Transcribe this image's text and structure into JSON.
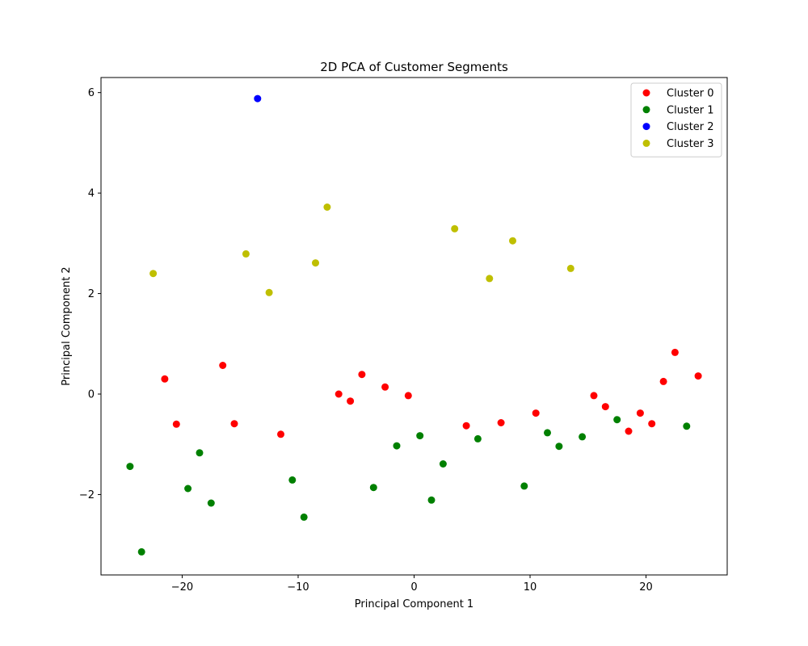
{
  "chart_data": {
    "type": "scatter",
    "title": "2D PCA of Customer Segments",
    "xlabel": "Principal Component 1",
    "ylabel": "Principal Component 2",
    "xlim": [
      -27,
      27
    ],
    "ylim": [
      -3.6,
      6.3
    ],
    "xticks": [
      -20,
      -10,
      0,
      10,
      20
    ],
    "yticks": [
      -2,
      0,
      2,
      4,
      6
    ],
    "grid": false,
    "legend_position": "top-right",
    "series": [
      {
        "name": "Cluster 0",
        "color": "#ff0000",
        "points": [
          [
            -21.5,
            0.3
          ],
          [
            -20.5,
            -0.6
          ],
          [
            -16.5,
            0.57
          ],
          [
            -15.5,
            -0.59
          ],
          [
            -11.5,
            -0.8
          ],
          [
            -6.5,
            0.0
          ],
          [
            -5.5,
            -0.14
          ],
          [
            -4.5,
            0.39
          ],
          [
            -2.5,
            0.14
          ],
          [
            -0.5,
            -0.03
          ],
          [
            4.5,
            -0.63
          ],
          [
            7.5,
            -0.57
          ],
          [
            10.5,
            -0.38
          ],
          [
            15.5,
            -0.03
          ],
          [
            16.5,
            -0.25
          ],
          [
            18.5,
            -0.74
          ],
          [
            19.5,
            -0.38
          ],
          [
            20.5,
            -0.59
          ],
          [
            21.5,
            0.25
          ],
          [
            22.5,
            0.83
          ],
          [
            24.5,
            0.36
          ]
        ]
      },
      {
        "name": "Cluster 1",
        "color": "#008000",
        "points": [
          [
            -24.5,
            -1.44
          ],
          [
            -23.5,
            -3.14
          ],
          [
            -19.5,
            -1.88
          ],
          [
            -18.5,
            -1.17
          ],
          [
            -17.5,
            -2.17
          ],
          [
            -10.5,
            -1.71
          ],
          [
            -9.5,
            -2.45
          ],
          [
            -3.5,
            -1.86
          ],
          [
            -1.5,
            -1.03
          ],
          [
            0.5,
            -0.83
          ],
          [
            1.5,
            -2.11
          ],
          [
            2.5,
            -1.39
          ],
          [
            5.5,
            -0.89
          ],
          [
            9.5,
            -1.83
          ],
          [
            11.5,
            -0.77
          ],
          [
            12.5,
            -1.04
          ],
          [
            14.5,
            -0.85
          ],
          [
            17.5,
            -0.51
          ],
          [
            23.5,
            -0.64
          ]
        ]
      },
      {
        "name": "Cluster 2",
        "color": "#0000ff",
        "points": [
          [
            -13.5,
            5.88
          ]
        ]
      },
      {
        "name": "Cluster 3",
        "color": "#bfbf00",
        "points": [
          [
            -22.5,
            2.4
          ],
          [
            -14.5,
            2.79
          ],
          [
            -12.5,
            2.02
          ],
          [
            -8.5,
            2.61
          ],
          [
            -7.5,
            3.72
          ],
          [
            3.5,
            3.29
          ],
          [
            6.5,
            2.3
          ],
          [
            8.5,
            3.05
          ],
          [
            13.5,
            2.5
          ]
        ]
      }
    ]
  }
}
